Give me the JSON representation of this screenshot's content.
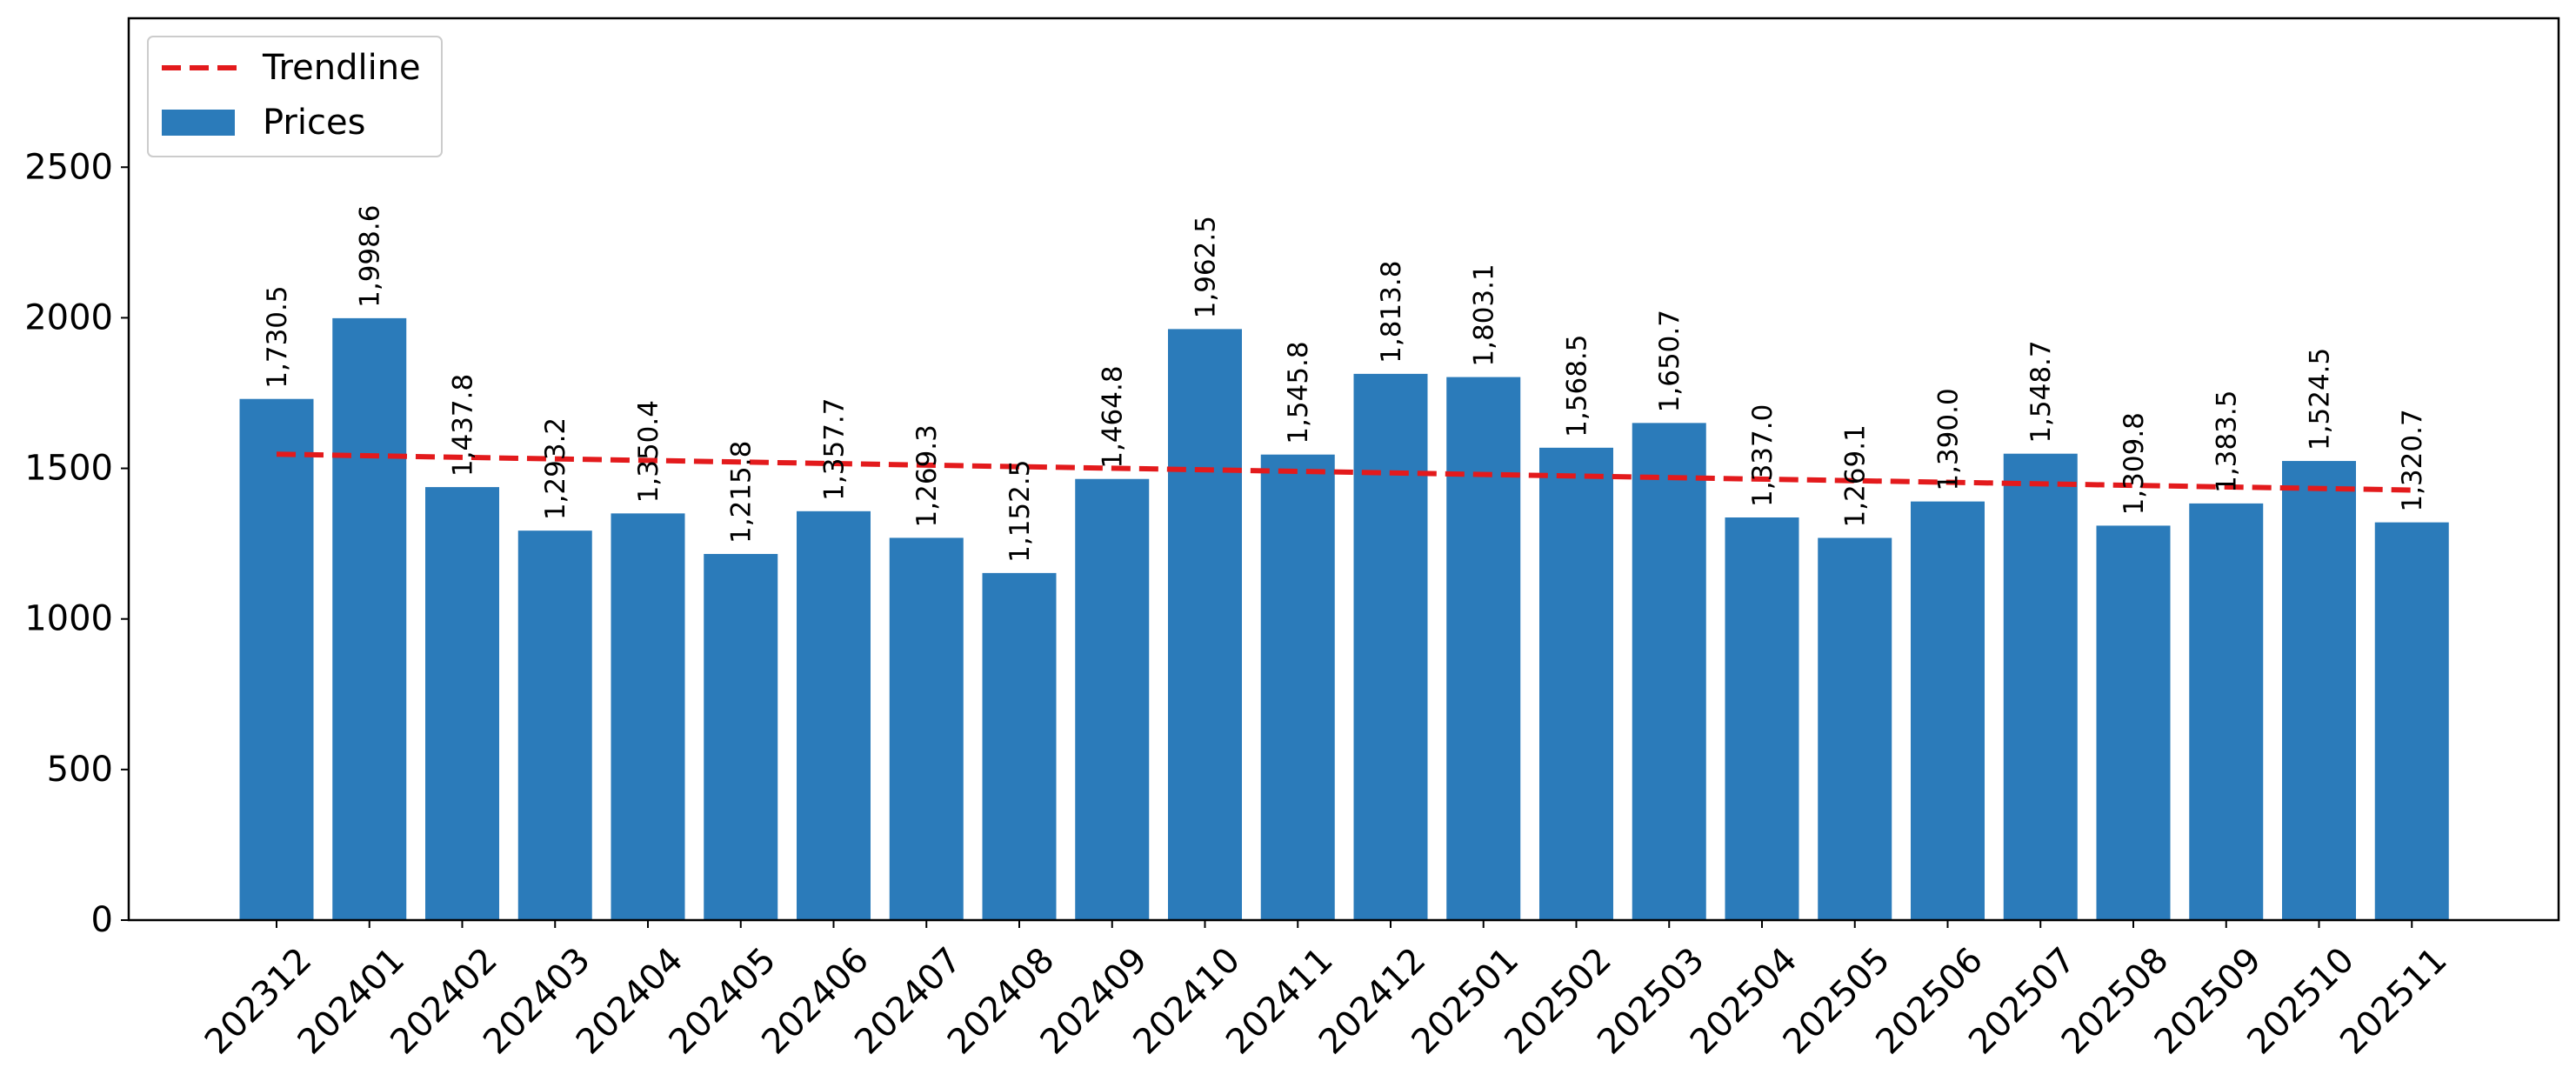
{
  "chart_data": {
    "type": "bar",
    "title": "",
    "xlabel": "",
    "ylabel": "",
    "ylim": [
      0,
      3000
    ],
    "yticks": [
      0,
      500,
      1000,
      1500,
      2000,
      2500
    ],
    "grid": false,
    "legend_position": "top-left",
    "categories": [
      "202312",
      "202401",
      "202402",
      "202403",
      "202404",
      "202405",
      "202406",
      "202407",
      "202408",
      "202409",
      "202410",
      "202411",
      "202412",
      "202501",
      "202502",
      "202503",
      "202504",
      "202505",
      "202506",
      "202507",
      "202508",
      "202509",
      "202510",
      "202511"
    ],
    "value_labels": [
      "1,730.5",
      "1,998.6",
      "1,437.8",
      "1,293.2",
      "1,350.4",
      "1,215.8",
      "1,357.7",
      "1,269.3",
      "1,152.5",
      "1,464.8",
      "1,962.5",
      "1,545.8",
      "1,813.8",
      "1,803.1",
      "1,568.5",
      "1,650.7",
      "1,337.0",
      "1,269.1",
      "1,390.0",
      "1,548.7",
      "1,309.8",
      "1,383.5",
      "1,524.5",
      "1,320.7"
    ],
    "series": [
      {
        "name": "Prices",
        "type": "bar",
        "color": "#2b7bba",
        "values": [
          1730.5,
          1998.6,
          1437.8,
          1293.2,
          1350.4,
          1215.8,
          1357.7,
          1269.3,
          1152.5,
          1464.8,
          1962.5,
          1545.8,
          1813.8,
          1803.1,
          1568.5,
          1650.7,
          1337.0,
          1269.1,
          1390.0,
          1548.7,
          1309.8,
          1383.5,
          1524.5,
          1320.7
        ]
      },
      {
        "name": "Trendline",
        "type": "line",
        "style": "dashed",
        "color": "#e31a1c",
        "start": 1547,
        "end": 1428
      }
    ],
    "legend": [
      "Trendline",
      "Prices"
    ]
  }
}
